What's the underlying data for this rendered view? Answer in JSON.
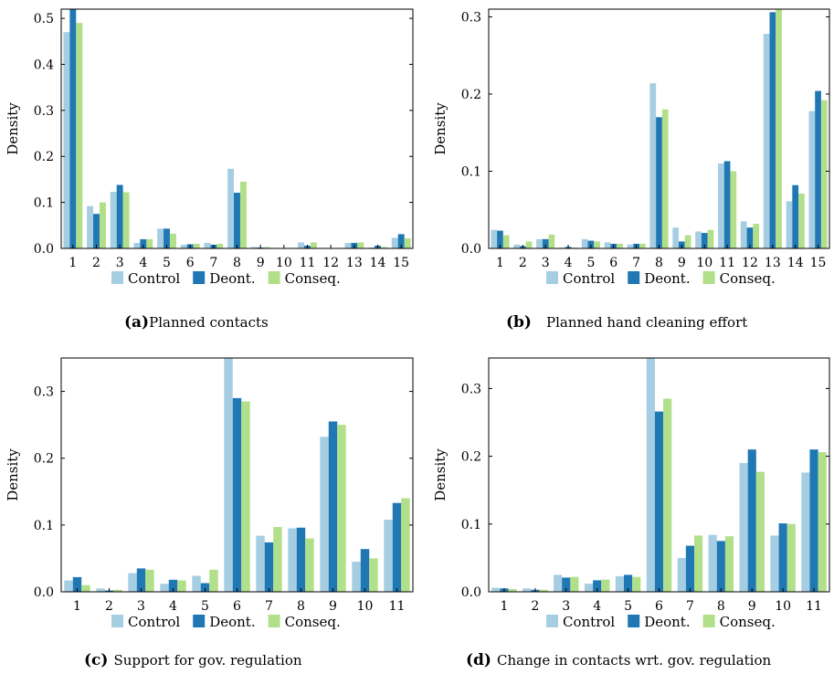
{
  "colors": {
    "control": "#a6cee3",
    "deont": "#1f78b4",
    "conseq": "#b2df8a"
  },
  "chart_data": [
    {
      "type": "bar",
      "panel_label": "(a)",
      "caption": "Planned contacts",
      "ylabel": "Density",
      "ylim": [
        0,
        0.52
      ],
      "yticks": [
        "0.0",
        "0.1",
        "0.2",
        "0.3",
        "0.4",
        "0.5"
      ],
      "ytick_values": [
        0,
        0.1,
        0.2,
        0.3,
        0.4,
        0.5
      ],
      "categories": [
        "1",
        "2",
        "3",
        "4",
        "5",
        "6",
        "7",
        "8",
        "9",
        "10",
        "11",
        "12",
        "13",
        "14",
        "15"
      ],
      "series": [
        {
          "name": "Control",
          "values": [
            0.47,
            0.092,
            0.123,
            0.012,
            0.043,
            0.008,
            0.012,
            0.173,
            0.003,
            0.001,
            0.013,
            0.001,
            0.012,
            0.002,
            0.023
          ]
        },
        {
          "name": "Deont.",
          "values": [
            0.52,
            0.075,
            0.138,
            0.02,
            0.043,
            0.009,
            0.008,
            0.121,
            0.002,
            0.001,
            0.006,
            0.001,
            0.012,
            0.006,
            0.031
          ]
        },
        {
          "name": "Conseq.",
          "values": [
            0.49,
            0.1,
            0.122,
            0.02,
            0.032,
            0.01,
            0.01,
            0.145,
            0.003,
            0.001,
            0.013,
            0.001,
            0.013,
            0.003,
            0.022
          ]
        }
      ]
    },
    {
      "type": "bar",
      "panel_label": "(b)",
      "caption": "Planned hand cleaning effort",
      "ylabel": "Density",
      "ylim": [
        0,
        0.31
      ],
      "yticks": [
        "0.0",
        "0.1",
        "0.2",
        "0.3"
      ],
      "ytick_values": [
        0,
        0.1,
        0.2,
        0.3
      ],
      "categories": [
        "1",
        "2",
        "3",
        "4",
        "5",
        "6",
        "7",
        "8",
        "9",
        "10",
        "11",
        "12",
        "13",
        "14",
        "15"
      ],
      "series": [
        {
          "name": "Control",
          "values": [
            0.024,
            0.005,
            0.012,
            0.001,
            0.012,
            0.008,
            0.005,
            0.214,
            0.027,
            0.022,
            0.11,
            0.035,
            0.278,
            0.061,
            0.178
          ]
        },
        {
          "name": "Deont.",
          "values": [
            0.023,
            0.003,
            0.012,
            0.002,
            0.01,
            0.006,
            0.006,
            0.17,
            0.009,
            0.02,
            0.113,
            0.027,
            0.306,
            0.082,
            0.204
          ]
        },
        {
          "name": "Conseq.",
          "values": [
            0.017,
            0.009,
            0.018,
            0.001,
            0.009,
            0.006,
            0.006,
            0.18,
            0.017,
            0.024,
            0.1,
            0.032,
            0.31,
            0.071,
            0.192
          ]
        }
      ]
    },
    {
      "type": "bar",
      "panel_label": "(c)",
      "caption": "Support for gov. regulation",
      "ylabel": "Density",
      "ylim": [
        0,
        0.35
      ],
      "yticks": [
        "0.0",
        "0.1",
        "0.2",
        "0.3"
      ],
      "ytick_values": [
        0,
        0.1,
        0.2,
        0.3
      ],
      "categories": [
        "1",
        "2",
        "3",
        "4",
        "5",
        "6",
        "7",
        "8",
        "9",
        "10",
        "11"
      ],
      "series": [
        {
          "name": "Control",
          "values": [
            0.017,
            0.005,
            0.028,
            0.012,
            0.024,
            0.35,
            0.084,
            0.095,
            0.232,
            0.045,
            0.108
          ]
        },
        {
          "name": "Deont.",
          "values": [
            0.022,
            0.002,
            0.035,
            0.018,
            0.013,
            0.29,
            0.074,
            0.096,
            0.255,
            0.064,
            0.133
          ]
        },
        {
          "name": "Conseq.",
          "values": [
            0.01,
            0.003,
            0.033,
            0.017,
            0.033,
            0.285,
            0.097,
            0.08,
            0.25,
            0.05,
            0.14
          ]
        }
      ]
    },
    {
      "type": "bar",
      "panel_label": "(d)",
      "caption": "Change in contacts wrt. gov. regulation",
      "ylabel": "Density",
      "ylim": [
        0,
        0.345
      ],
      "yticks": [
        "0.0",
        "0.1",
        "0.2",
        "0.3"
      ],
      "ytick_values": [
        0,
        0.1,
        0.2,
        0.3
      ],
      "categories": [
        "1",
        "2",
        "3",
        "4",
        "5",
        "6",
        "7",
        "8",
        "9",
        "10",
        "11"
      ],
      "series": [
        {
          "name": "Control",
          "values": [
            0.006,
            0.005,
            0.025,
            0.012,
            0.023,
            0.345,
            0.05,
            0.084,
            0.19,
            0.083,
            0.176
          ]
        },
        {
          "name": "Deont.",
          "values": [
            0.005,
            0.003,
            0.021,
            0.017,
            0.025,
            0.266,
            0.068,
            0.075,
            0.21,
            0.101,
            0.21
          ]
        },
        {
          "name": "Conseq.",
          "values": [
            0.004,
            0.003,
            0.022,
            0.018,
            0.022,
            0.285,
            0.083,
            0.082,
            0.177,
            0.1,
            0.206
          ]
        }
      ]
    }
  ]
}
